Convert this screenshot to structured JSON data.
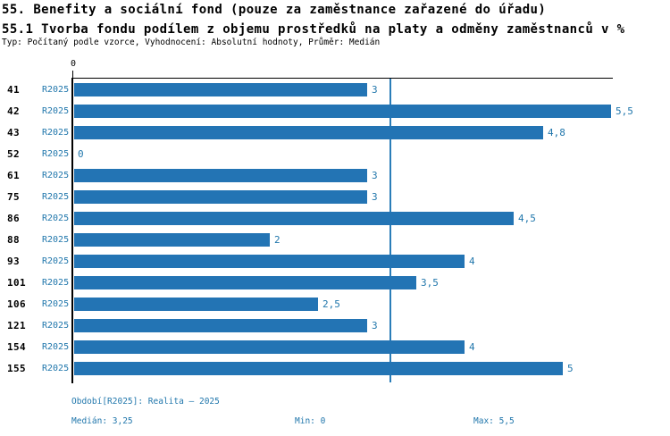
{
  "header": {
    "title_line1": "55. Benefity a sociální fond (pouze za zaměstnance zařazené do úřadu)",
    "title_line2": "55.1 Tvorba fondu podílem z objemu prostředků na platy a odměny zaměstnanců v %",
    "meta_line": "Typ: Počítaný podle vzorce, Vyhodnocení: Absolutní hodnoty, Průměr: Medián"
  },
  "chart_data": {
    "type": "bar",
    "orientation": "horizontal",
    "title": "55.1 Tvorba fondu podílem z objemu prostředků na platy a odměny zaměstnanců v %",
    "categories": [
      "41",
      "42",
      "43",
      "52",
      "61",
      "75",
      "86",
      "88",
      "93",
      "101",
      "106",
      "121",
      "154",
      "155"
    ],
    "series": [
      {
        "name": "R2025",
        "values": [
          3,
          5.5,
          4.8,
          0,
          3,
          3,
          4.5,
          2,
          4,
          3.5,
          2.5,
          3,
          4,
          5
        ],
        "value_labels": [
          "3",
          "5,5",
          "4,8",
          "0",
          "3",
          "3",
          "4,5",
          "2",
          "4",
          "3,5",
          "2,5",
          "3",
          "4",
          "5"
        ]
      }
    ],
    "xlim": [
      0,
      5.5
    ],
    "x_axis_zero_label": "0",
    "median_value": 3.25,
    "grid": false,
    "legend_position": "none"
  },
  "footer": {
    "period_label": "Období[R2025]: Realita – 2025",
    "median_label": "Medián: 3,25",
    "min_label": "Min: 0",
    "max_label": "Max: 5,5"
  },
  "colors": {
    "bar_fill": "#2374b4",
    "accent_text": "#2177ac",
    "median_line": "#2a7db8",
    "axis": "#000000"
  }
}
